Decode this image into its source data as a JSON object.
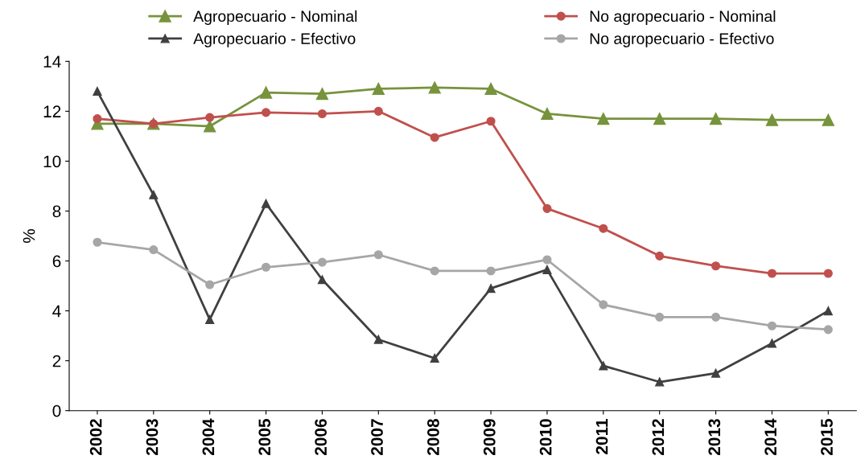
{
  "chart_data": {
    "type": "line",
    "ylabel": "%",
    "categories": [
      "2002",
      "2003",
      "2004",
      "2005",
      "2006",
      "2007",
      "2008",
      "2009",
      "2010",
      "2011",
      "2012",
      "2013",
      "2014",
      "2015"
    ],
    "series": [
      {
        "name": "Agropecuario - Nominal",
        "color": "#77933c",
        "marker": "triangle",
        "values": [
          11.5,
          11.5,
          11.4,
          12.75,
          12.7,
          12.9,
          12.95,
          12.9,
          11.9,
          11.7,
          11.7,
          11.7,
          11.65,
          11.65
        ]
      },
      {
        "name": "No agropecuario - Nominal",
        "color": "#c0504d",
        "marker": "circle",
        "values": [
          11.7,
          11.5,
          11.75,
          11.95,
          11.9,
          12.0,
          10.95,
          11.6,
          8.1,
          7.3,
          6.2,
          5.8,
          5.5,
          5.5
        ]
      },
      {
        "name": "Agropecuario - Efectivo",
        "color": "#404040",
        "marker": "triangle",
        "values": [
          12.8,
          8.65,
          3.65,
          8.3,
          5.25,
          2.85,
          2.1,
          4.9,
          5.65,
          1.8,
          1.15,
          1.5,
          2.7,
          4.0
        ]
      },
      {
        "name": "No agropecuario - Efectivo",
        "color": "#a6a6a6",
        "marker": "circle",
        "values": [
          6.75,
          6.45,
          5.05,
          5.75,
          5.95,
          6.25,
          5.6,
          5.6,
          6.05,
          4.25,
          3.75,
          3.75,
          3.4,
          3.25
        ]
      }
    ],
    "ylim": [
      0,
      14
    ],
    "yticks": [
      0,
      2,
      4,
      6,
      8,
      10,
      12,
      14
    ],
    "grid": false,
    "legend": "top"
  }
}
